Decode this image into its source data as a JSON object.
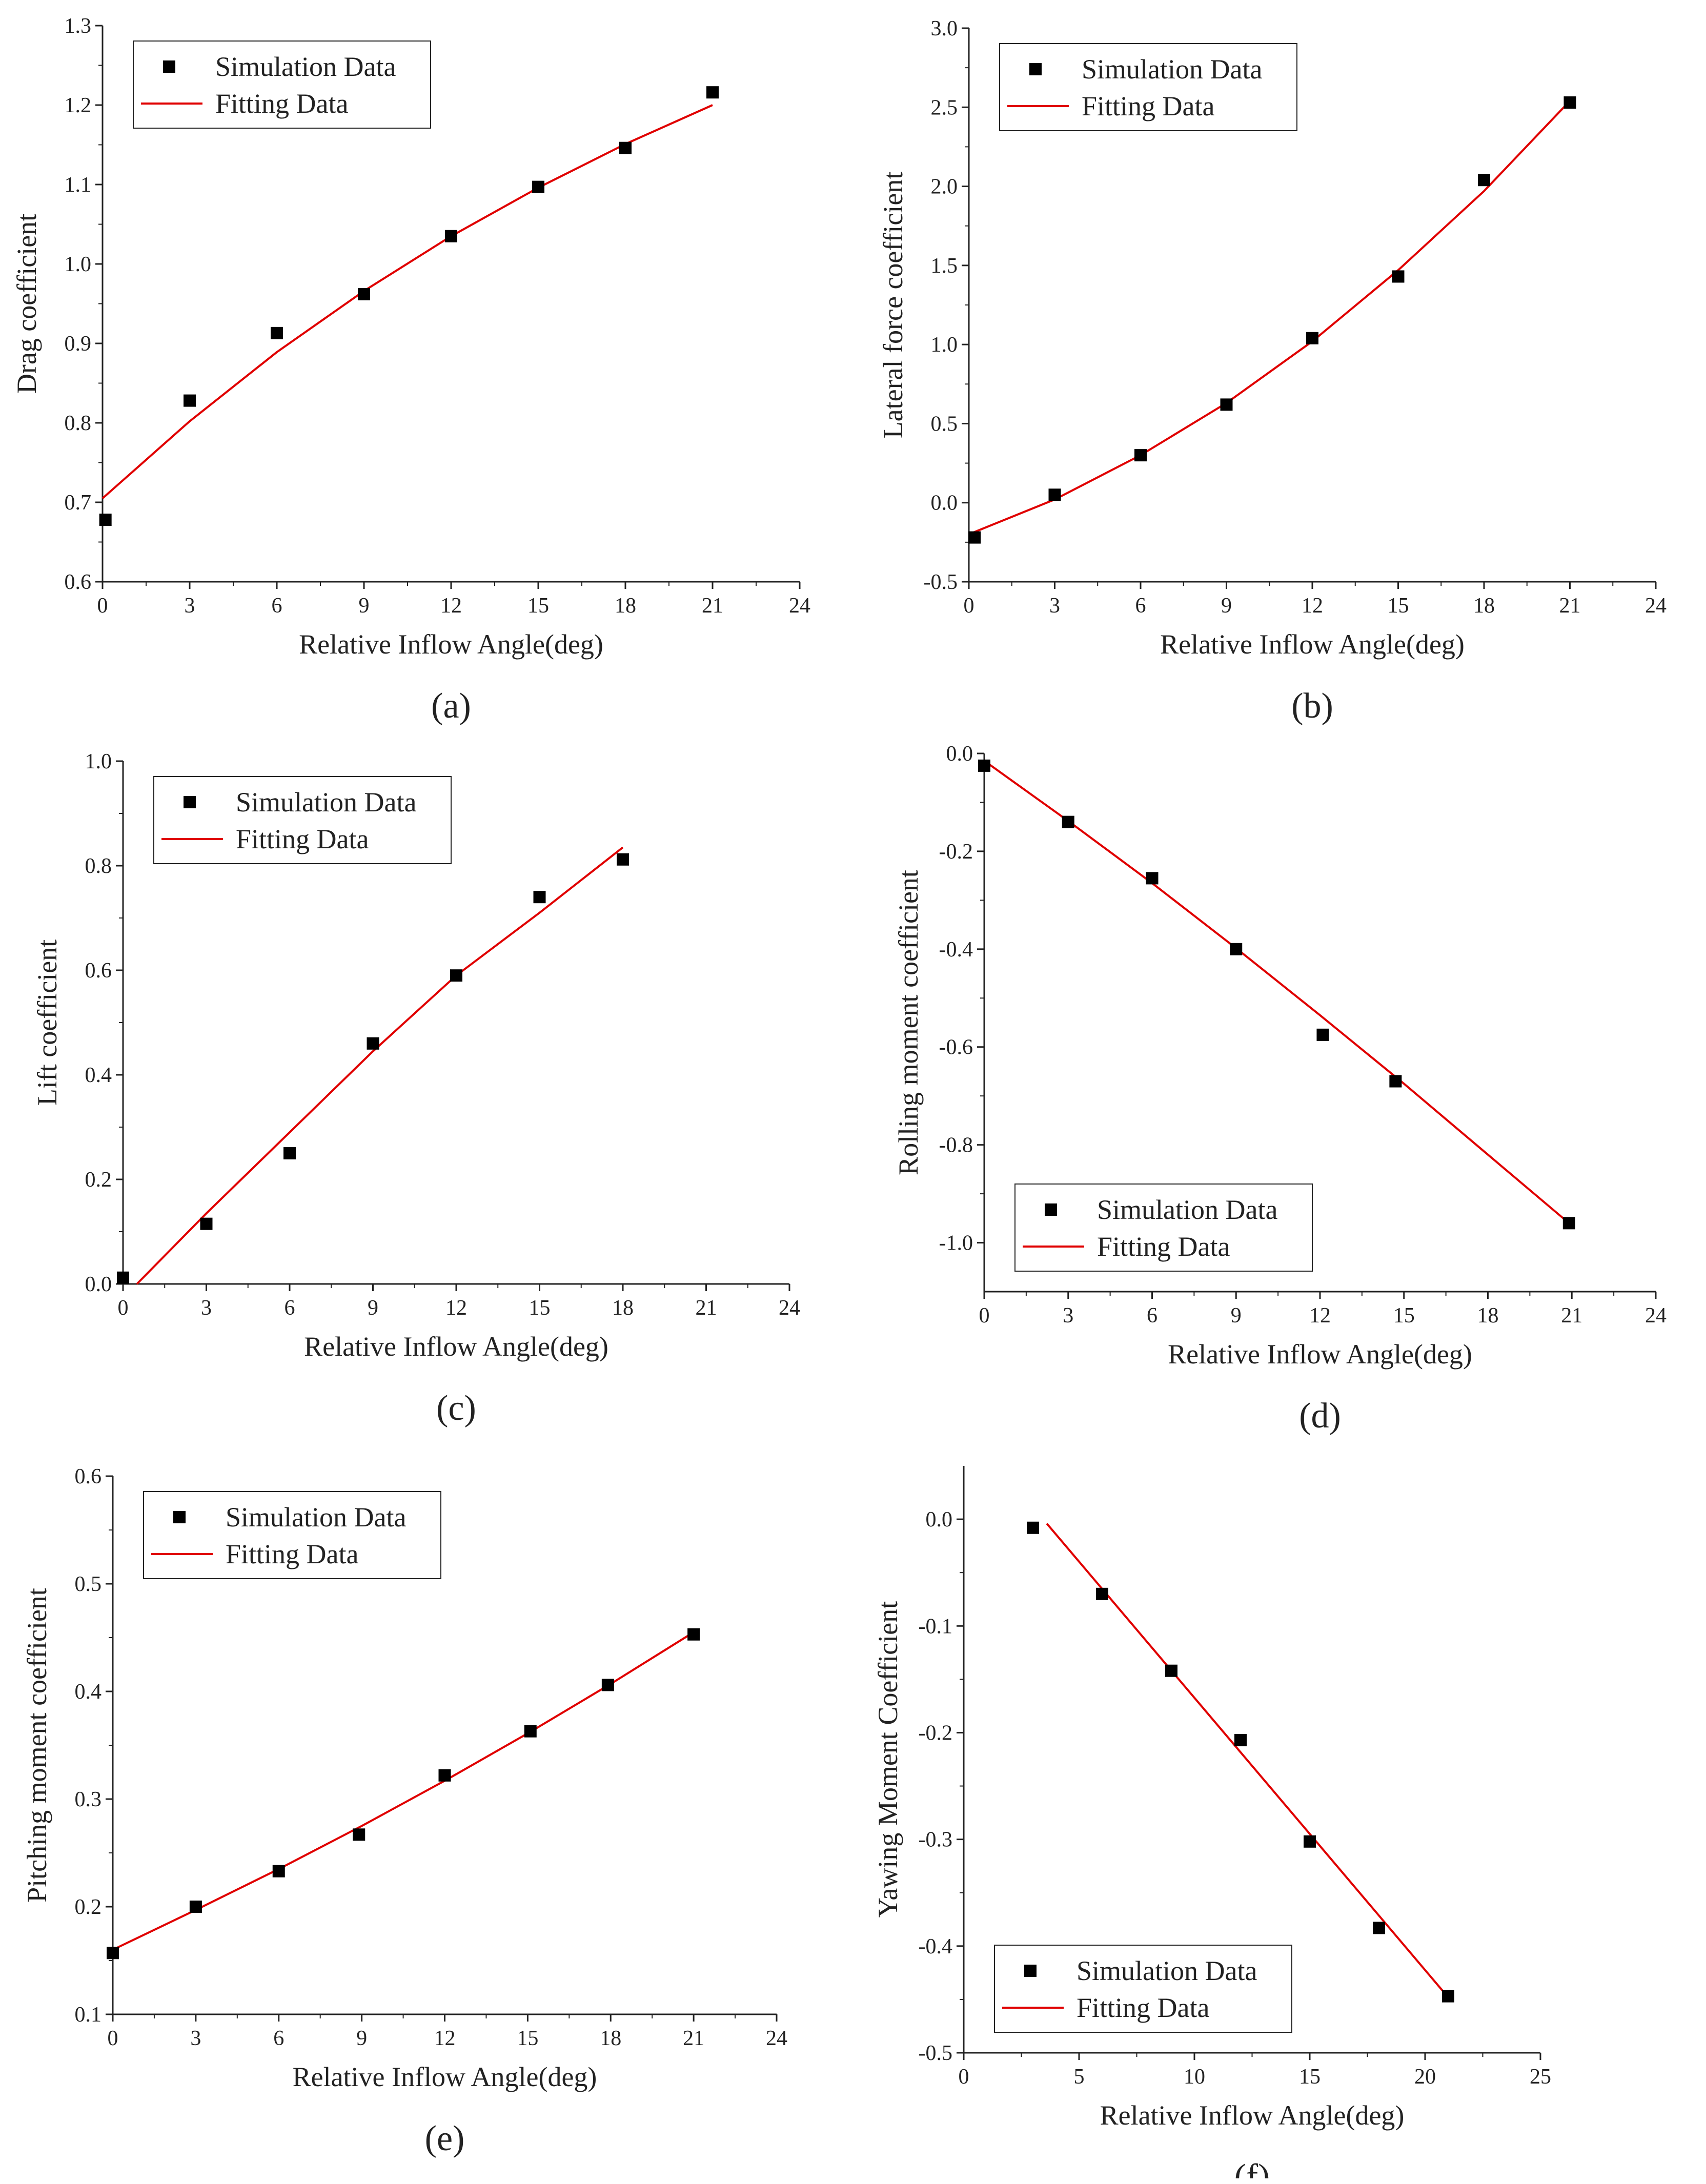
{
  "figure": {
    "legend_labels": {
      "simulation": "Simulation Data",
      "fitting": "Fitting Data"
    },
    "colors": {
      "marker": "#000000",
      "fit_line": "#e00000",
      "axis": "#222222"
    }
  },
  "chart_data": [
    {
      "type": "scatter",
      "panel_label": "(a)",
      "xlabel": "Relative Inflow Angle(deg)",
      "ylabel": "Drag coefficient",
      "xlim": [
        0,
        24
      ],
      "ylim": [
        0.6,
        1.3
      ],
      "xticks": [
        "0",
        "3",
        "6",
        "9",
        "12",
        "15",
        "18",
        "21",
        "24"
      ],
      "yticks": [
        "0.6",
        "0.7",
        "0.8",
        "0.9",
        "1.0",
        "1.1",
        "1.2",
        "1.3"
      ],
      "legend_position": "top-left",
      "series": [
        {
          "name": "Simulation Data",
          "kind": "markers",
          "x": [
            0.1,
            3,
            6,
            9,
            12,
            15,
            18,
            21
          ],
          "y": [
            0.678,
            0.828,
            0.913,
            0.962,
            1.035,
            1.097,
            1.146,
            1.216
          ]
        },
        {
          "name": "Fitting Data",
          "kind": "line",
          "x": [
            0,
            3,
            6,
            9,
            12,
            15,
            18,
            21
          ],
          "y": [
            0.705,
            0.802,
            0.889,
            0.966,
            1.035,
            1.096,
            1.151,
            1.2
          ]
        }
      ]
    },
    {
      "type": "scatter",
      "panel_label": "(b)",
      "xlabel": "Relative Inflow Angle(deg)",
      "ylabel": "Lateral force coefficient",
      "xlim": [
        0,
        24
      ],
      "ylim": [
        -0.5,
        3.0
      ],
      "xticks": [
        "0",
        "3",
        "6",
        "9",
        "12",
        "15",
        "18",
        "21",
        "24"
      ],
      "yticks": [
        "-0.5",
        "0.0",
        "0.5",
        "1.0",
        "1.5",
        "2.0",
        "2.5",
        "3.0"
      ],
      "legend_position": "top-left",
      "series": [
        {
          "name": "Simulation Data",
          "kind": "markers",
          "x": [
            0.2,
            3,
            6,
            9,
            12,
            15,
            18,
            21
          ],
          "y": [
            -0.22,
            0.05,
            0.3,
            0.62,
            1.04,
            1.43,
            2.04,
            2.53
          ]
        },
        {
          "name": "Fitting Data",
          "kind": "line",
          "x": [
            0,
            3,
            6,
            9,
            12,
            15,
            18,
            21
          ],
          "y": [
            -0.2,
            0.02,
            0.3,
            0.63,
            1.02,
            1.47,
            1.97,
            2.54
          ]
        }
      ]
    },
    {
      "type": "scatter",
      "panel_label": "(c)",
      "xlabel": "Relative Inflow Angle(deg)",
      "ylabel": "Lift coefficient",
      "xlim": [
        0,
        24
      ],
      "ylim": [
        0.0,
        1.0
      ],
      "xticks": [
        "0",
        "3",
        "6",
        "9",
        "12",
        "15",
        "18",
        "21",
        "24"
      ],
      "yticks": [
        "0.0",
        "0.2",
        "0.4",
        "0.6",
        "0.8",
        "1.0"
      ],
      "legend_position": "top-left",
      "series": [
        {
          "name": "Simulation Data",
          "kind": "markers",
          "x": [
            0,
            3,
            6,
            9,
            12,
            15,
            18
          ],
          "y": [
            0.012,
            0.115,
            0.25,
            0.46,
            0.59,
            0.74,
            0.812
          ]
        },
        {
          "name": "Fitting Data",
          "kind": "line",
          "x": [
            0.5,
            3,
            6,
            9,
            12,
            15,
            18
          ],
          "y": [
            0.0,
            0.135,
            0.29,
            0.445,
            0.59,
            0.71,
            0.835
          ]
        }
      ]
    },
    {
      "type": "scatter",
      "panel_label": "(d)",
      "xlabel": "Relative Inflow Angle(deg)",
      "ylabel": "Rolling moment coefficient",
      "xlim": [
        0,
        24
      ],
      "ylim": [
        -1.1,
        0.0
      ],
      "xticks": [
        "0",
        "3",
        "6",
        "9",
        "12",
        "15",
        "18",
        "21",
        "24"
      ],
      "yticks": [
        "0.0",
        "-0.2",
        "-0.4",
        "-0.6",
        "-0.8",
        "-1.0"
      ],
      "legend_position": "bottom-left",
      "series": [
        {
          "name": "Simulation Data",
          "kind": "markers",
          "x": [
            0,
            3,
            6,
            9,
            12.1,
            14.7,
            20.9
          ],
          "y": [
            -0.025,
            -0.14,
            -0.255,
            -0.4,
            -0.575,
            -0.67,
            -0.96
          ]
        },
        {
          "name": "Fitting Data",
          "kind": "line",
          "x": [
            0,
            3,
            6,
            9,
            12,
            15,
            18,
            20.9
          ],
          "y": [
            -0.015,
            -0.138,
            -0.265,
            -0.398,
            -0.535,
            -0.675,
            -0.82,
            -0.96
          ]
        }
      ]
    },
    {
      "type": "scatter",
      "panel_label": "(e)",
      "xlabel": "Relative Inflow Angle(deg)",
      "ylabel": "Pitching moment coefficient",
      "xlim": [
        0,
        24
      ],
      "ylim": [
        0.1,
        0.6
      ],
      "xticks": [
        "0",
        "3",
        "6",
        "9",
        "12",
        "15",
        "18",
        "21",
        "24"
      ],
      "yticks": [
        "0.1",
        "0.2",
        "0.3",
        "0.4",
        "0.5",
        "0.6"
      ],
      "legend_position": "top-left",
      "series": [
        {
          "name": "Simulation Data",
          "kind": "markers",
          "x": [
            0,
            3,
            6,
            8.9,
            12,
            15.1,
            17.9,
            21
          ],
          "y": [
            0.157,
            0.2,
            0.233,
            0.267,
            0.322,
            0.363,
            0.406,
            0.453
          ]
        },
        {
          "name": "Fitting Data",
          "kind": "line",
          "x": [
            0,
            3,
            6,
            9,
            12,
            15,
            18,
            21
          ],
          "y": [
            0.16,
            0.197,
            0.235,
            0.275,
            0.317,
            0.361,
            0.407,
            0.455
          ]
        }
      ]
    },
    {
      "type": "scatter",
      "panel_label": "(f)",
      "xlabel": "Relative Inflow Angle(deg)",
      "ylabel": "Yawing Moment Coefficient",
      "xlim": [
        0,
        25
      ],
      "ylim": [
        -0.5,
        0.05
      ],
      "xticks": [
        "0",
        "5",
        "10",
        "15",
        "20",
        "25"
      ],
      "yticks": [
        "0.0",
        "-0.1",
        "-0.2",
        "-0.3",
        "-0.4",
        "-0.5"
      ],
      "legend_position": "bottom-left",
      "series": [
        {
          "name": "Simulation Data",
          "kind": "markers",
          "x": [
            3,
            6,
            9,
            12,
            15,
            18,
            21
          ],
          "y": [
            -0.008,
            -0.07,
            -0.142,
            -0.207,
            -0.302,
            -0.383,
            -0.447
          ]
        },
        {
          "name": "Fitting Data",
          "kind": "line",
          "x": [
            3.6,
            21
          ],
          "y": [
            -0.004,
            -0.448
          ]
        }
      ]
    }
  ]
}
